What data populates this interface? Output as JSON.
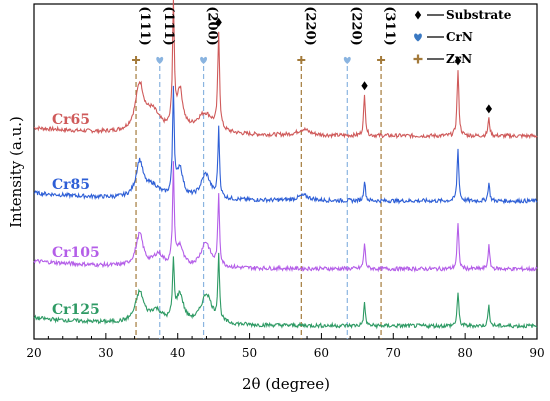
{
  "chart_data": {
    "type": "line",
    "xlabel": "2θ (degree)",
    "ylabel": "Intensity (a.u.)",
    "xlim": [
      20,
      90
    ],
    "xticks": [
      20,
      30,
      40,
      50,
      60,
      70,
      80,
      90
    ],
    "grid": false,
    "legend_position": "top-right",
    "legend": [
      {
        "label": "Substrate",
        "marker": "diamond",
        "color": "#000000"
      },
      {
        "label": "CrN",
        "marker": "heart",
        "color": "#3a78c2"
      },
      {
        "label": "ZrN",
        "marker": "club",
        "color": "#a37a3a"
      }
    ],
    "reference_lines": [
      {
        "x": 34.2,
        "phase": "ZrN",
        "hkl": "(111)",
        "color": "#a37a3a"
      },
      {
        "x": 37.5,
        "phase": "CrN",
        "hkl": "(111)",
        "color": "#8ab4e0"
      },
      {
        "x": 43.6,
        "phase": "CrN",
        "hkl": "(200)",
        "color": "#8ab4e0"
      },
      {
        "x": 57.2,
        "phase": "ZrN",
        "hkl": "(220)",
        "color": "#a37a3a"
      },
      {
        "x": 63.6,
        "phase": "CrN",
        "hkl": "(220)",
        "color": "#8ab4e0"
      },
      {
        "x": 68.3,
        "phase": "ZrN",
        "hkl": "(311)",
        "color": "#a37a3a"
      }
    ],
    "substrate_peaks": [
      39.4,
      45.7,
      66.0,
      79.0,
      83.3
    ],
    "series": [
      {
        "name": "Cr65",
        "color": "#cf5a5a",
        "baseline": 1.9,
        "peaks": [
          [
            34.7,
            0.45,
            0.7
          ],
          [
            36.5,
            0.2,
            1.2
          ],
          [
            39.4,
            1.2,
            0.15
          ],
          [
            40.3,
            0.4,
            0.5
          ],
          [
            43.8,
            0.2,
            1.5
          ],
          [
            45.7,
            0.95,
            0.15
          ],
          [
            57.5,
            0.06,
            1.0
          ],
          [
            66.0,
            0.4,
            0.15
          ],
          [
            79.0,
            0.65,
            0.15
          ],
          [
            83.3,
            0.17,
            0.15
          ]
        ]
      },
      {
        "name": "Cr85",
        "color": "#2e5fd6",
        "baseline": 1.25,
        "peaks": [
          [
            34.7,
            0.35,
            0.6
          ],
          [
            36.5,
            0.12,
            1.2
          ],
          [
            39.4,
            1.05,
            0.14
          ],
          [
            40.3,
            0.3,
            0.5
          ],
          [
            43.9,
            0.25,
            0.8
          ],
          [
            45.7,
            0.68,
            0.14
          ],
          [
            57.5,
            0.05,
            1.0
          ],
          [
            66.0,
            0.2,
            0.14
          ],
          [
            79.0,
            0.52,
            0.14
          ],
          [
            83.3,
            0.18,
            0.14
          ]
        ]
      },
      {
        "name": "Cr105",
        "color": "#b45ee8",
        "baseline": 0.57,
        "peaks": [
          [
            34.7,
            0.32,
            0.6
          ],
          [
            37.3,
            0.12,
            0.8
          ],
          [
            39.4,
            0.97,
            0.14
          ],
          [
            40.3,
            0.2,
            0.5
          ],
          [
            43.9,
            0.25,
            0.8
          ],
          [
            45.7,
            0.7,
            0.14
          ],
          [
            66.0,
            0.25,
            0.14
          ],
          [
            79.0,
            0.45,
            0.14
          ],
          [
            83.3,
            0.23,
            0.14
          ]
        ]
      },
      {
        "name": "Cr125",
        "color": "#2e9a64",
        "baseline": 0.0,
        "peaks": [
          [
            34.7,
            0.3,
            0.7
          ],
          [
            37.0,
            0.12,
            1.0
          ],
          [
            39.4,
            0.55,
            0.15
          ],
          [
            40.3,
            0.28,
            0.6
          ],
          [
            44.0,
            0.3,
            0.9
          ],
          [
            45.7,
            0.65,
            0.14
          ],
          [
            66.0,
            0.22,
            0.14
          ],
          [
            79.0,
            0.33,
            0.14
          ],
          [
            83.3,
            0.2,
            0.14
          ]
        ]
      }
    ]
  }
}
